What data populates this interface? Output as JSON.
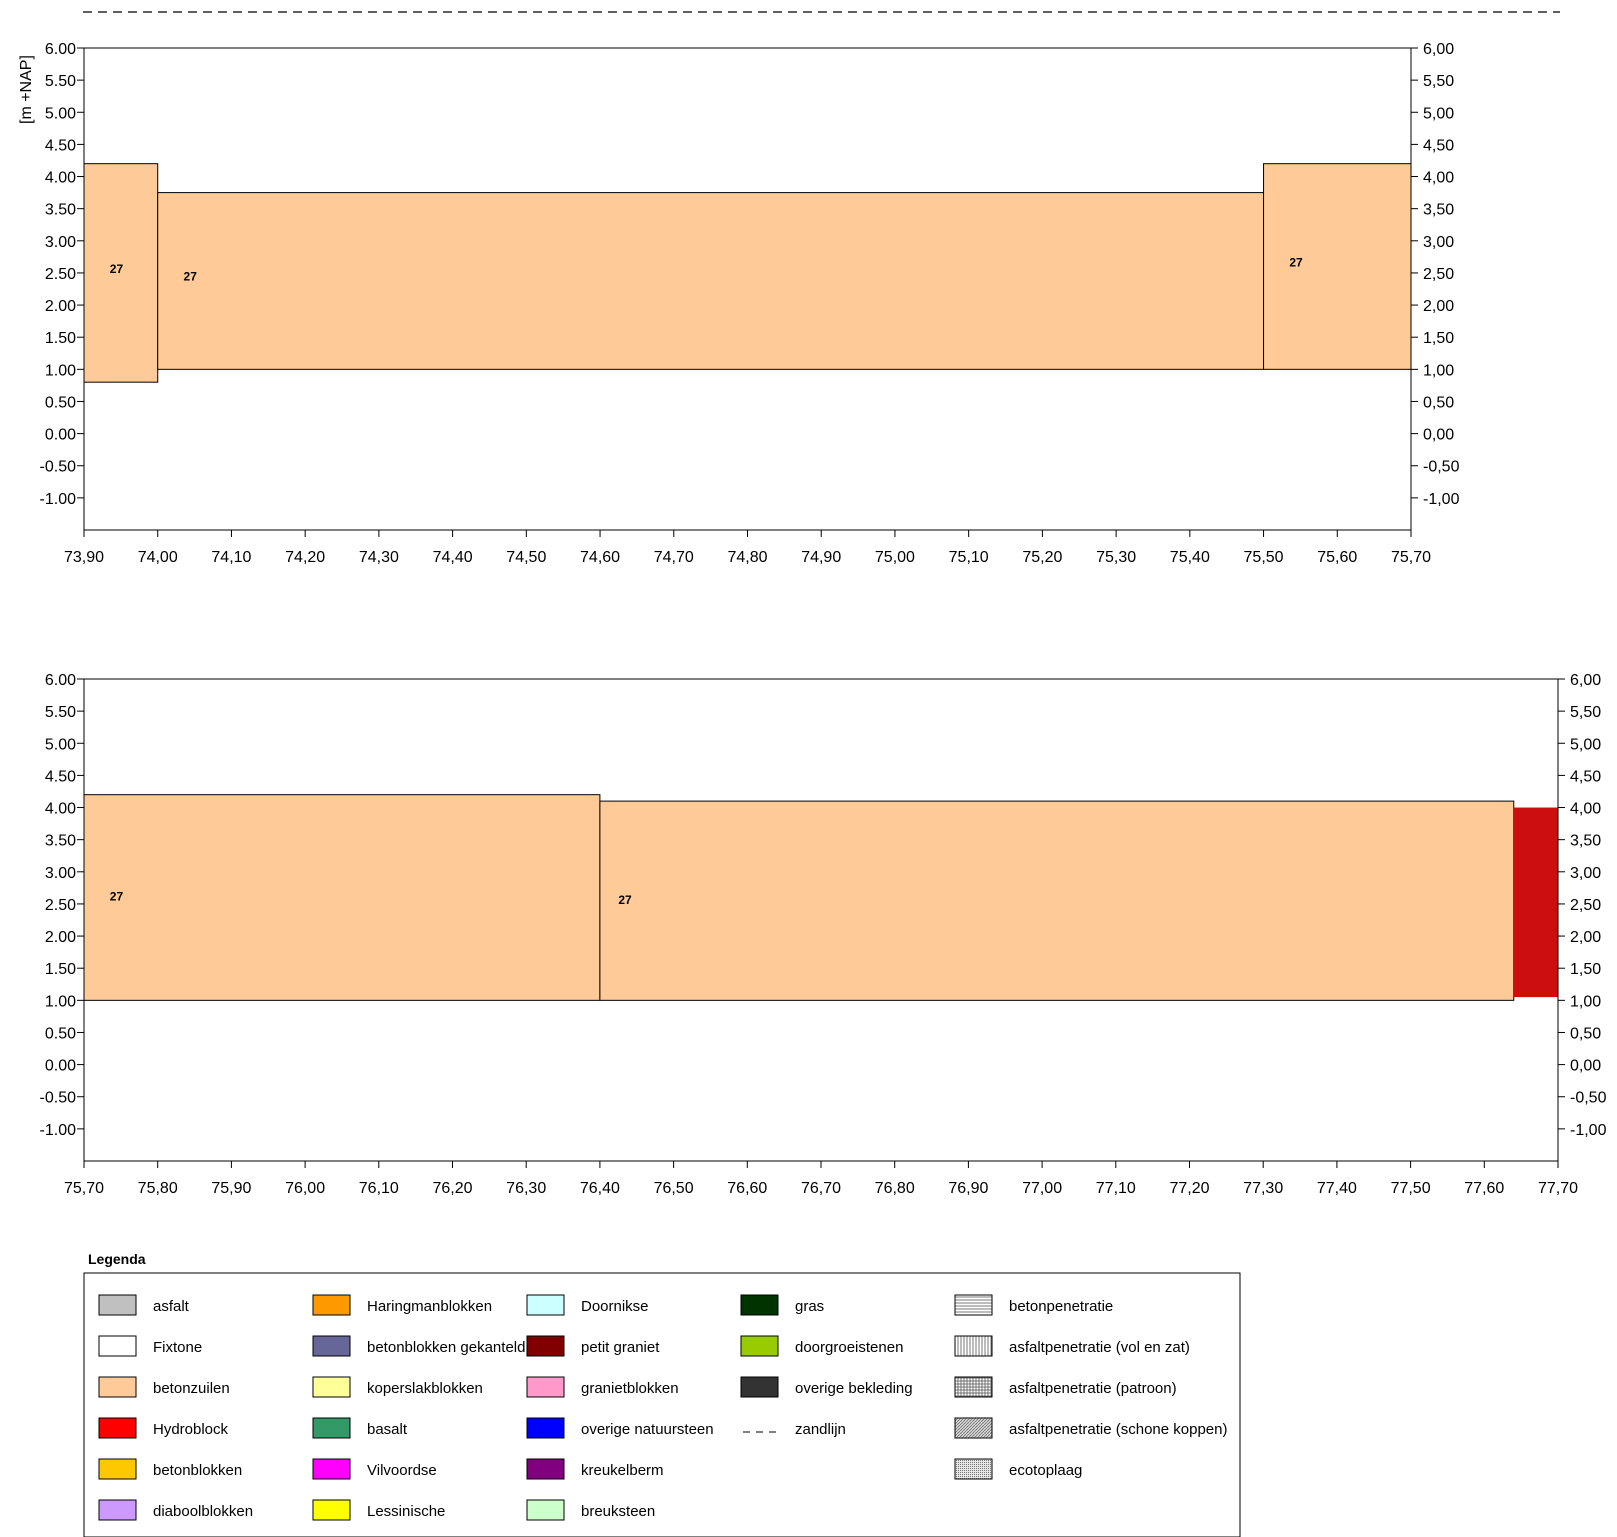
{
  "chart_data": [
    {
      "type": "bar",
      "subtype": "revetment-profile",
      "xlabel": "",
      "ylabel": "[m +NAP]",
      "xlim": [
        73.9,
        75.7
      ],
      "ylim": [
        -1.5,
        6.0
      ],
      "grid": false,
      "x_ticks": [
        "73,90",
        "74,00",
        "74,10",
        "74,20",
        "74,30",
        "74,40",
        "74,50",
        "74,60",
        "74,70",
        "74,80",
        "74,90",
        "75,00",
        "75,10",
        "75,20",
        "75,30",
        "75,40",
        "75,50",
        "75,60",
        "75,70"
      ],
      "y_ticks_left": [
        "6.00",
        "5.50",
        "5.00",
        "4.50",
        "4.00",
        "3.50",
        "3.00",
        "2.50",
        "2.00",
        "1.50",
        "1.00",
        "0.50",
        "0.00",
        "-0.50",
        "-1.00"
      ],
      "y_ticks_right": [
        "6,00",
        "5,50",
        "5,00",
        "4,50",
        "4,00",
        "3,50",
        "3,00",
        "2,50",
        "2,00",
        "1,50",
        "1,00",
        "0,50",
        "0,00",
        "-0,50",
        "-1,00"
      ],
      "segments": [
        {
          "x0": 73.9,
          "x1": 74.0,
          "y0": 0.8,
          "y1": 4.2,
          "material": "betonzuilen",
          "label": "27",
          "label_x": 73.935,
          "label_y": 2.5
        },
        {
          "x0": 74.0,
          "x1": 75.5,
          "y0": 1.0,
          "y1": 3.75,
          "material": "betonzuilen",
          "label": "27",
          "label_x": 74.035,
          "label_y": 2.38
        },
        {
          "x0": 75.5,
          "x1": 75.7,
          "y0": 1.0,
          "y1": 4.2,
          "material": "betonzuilen",
          "label": "27",
          "label_x": 75.535,
          "label_y": 2.6
        }
      ]
    },
    {
      "type": "bar",
      "subtype": "revetment-profile",
      "xlabel": "",
      "ylabel": "",
      "xlim": [
        75.7,
        77.7
      ],
      "ylim": [
        -1.5,
        6.0
      ],
      "grid": false,
      "x_ticks": [
        "75,70",
        "75,80",
        "75,90",
        "76,00",
        "76,10",
        "76,20",
        "76,30",
        "76,40",
        "76,50",
        "76,60",
        "76,70",
        "76,80",
        "76,90",
        "77,00",
        "77,10",
        "77,20",
        "77,30",
        "77,40",
        "77,50",
        "77,60",
        "77,70"
      ],
      "y_ticks_left": [
        "6.00",
        "5.50",
        "5.00",
        "4.50",
        "4.00",
        "3.50",
        "3.00",
        "2.50",
        "2.00",
        "1.50",
        "1.00",
        "0.50",
        "0.00",
        "-0.50",
        "-1.00"
      ],
      "y_ticks_right": [
        "6,00",
        "5,50",
        "5,00",
        "4,50",
        "4,00",
        "3,50",
        "3,00",
        "2,50",
        "2,00",
        "1,50",
        "1,00",
        "0,50",
        "0,00",
        "-0,50",
        "-1,00"
      ],
      "segments": [
        {
          "x0": 75.7,
          "x1": 76.4,
          "y0": 1.0,
          "y1": 4.2,
          "material": "betonzuilen",
          "label": "27",
          "label_x": 75.735,
          "label_y": 2.55
        },
        {
          "x0": 76.4,
          "x1": 77.64,
          "y0": 1.0,
          "y1": 4.1,
          "material": "betonzuilen",
          "label": "27",
          "label_x": 76.425,
          "label_y": 2.5
        },
        {
          "x0": 77.64,
          "x1": 77.7,
          "y0": 1.05,
          "y1": 4.0,
          "material": "Hydroblock",
          "label": "",
          "color": "#cc0e0e"
        }
      ]
    }
  ],
  "legend": {
    "title": "Legenda",
    "columns": [
      [
        {
          "label": "asfalt",
          "color": "#c0c0c0",
          "pattern": "solid"
        },
        {
          "label": "Fixtone",
          "color": "#ffffff",
          "pattern": "solid"
        },
        {
          "label": "betonzuilen",
          "color": "#fecb98",
          "pattern": "solid"
        },
        {
          "label": "Hydroblock",
          "color": "#ff0000",
          "pattern": "solid"
        },
        {
          "label": "betonblokken",
          "color": "#fec800",
          "pattern": "solid"
        },
        {
          "label": "diaboolblokken",
          "color": "#cc99ff",
          "pattern": "solid"
        }
      ],
      [
        {
          "label": "Haringmanblokken",
          "color": "#ff9900",
          "pattern": "solid"
        },
        {
          "label": "betonblokken gekanteld",
          "color": "#666699",
          "pattern": "solid"
        },
        {
          "label": "koperslakblokken",
          "color": "#ffff99",
          "pattern": "solid"
        },
        {
          "label": "basalt",
          "color": "#339966",
          "pattern": "solid"
        },
        {
          "label": "Vilvoordse",
          "color": "#ff00ff",
          "pattern": "solid"
        },
        {
          "label": "Lessinische",
          "color": "#ffff00",
          "pattern": "solid"
        }
      ],
      [
        {
          "label": "Doornikse",
          "color": "#ccffff",
          "pattern": "solid"
        },
        {
          "label": "petit graniet",
          "color": "#800000",
          "pattern": "solid"
        },
        {
          "label": "granietblokken",
          "color": "#ff99cc",
          "pattern": "solid"
        },
        {
          "label": "overige natuursteen",
          "color": "#0000ff",
          "pattern": "solid"
        },
        {
          "label": "kreukelberm",
          "color": "#800080",
          "pattern": "solid"
        },
        {
          "label": "breuksteen",
          "color": "#ccffcc",
          "pattern": "solid"
        }
      ],
      [
        {
          "label": "gras",
          "color": "#003300",
          "pattern": "solid"
        },
        {
          "label": "doorgroeistenen",
          "color": "#99cc00",
          "pattern": "solid"
        },
        {
          "label": "overige bekleding",
          "color": "#333333",
          "pattern": "solid"
        },
        {
          "label": "zandlijn",
          "color": "#000000",
          "pattern": "dash"
        }
      ],
      [
        {
          "label": "betonpenetratie",
          "color": "#ffffff",
          "pattern": "hlines"
        },
        {
          "label": "asfaltpenetratie (vol en zat)",
          "color": "#ffffff",
          "pattern": "vlines"
        },
        {
          "label": "asfaltpenetratie (patroon)",
          "color": "#ffffff",
          "pattern": "grid"
        },
        {
          "label": "asfaltpenetratie (schone koppen)",
          "color": "#ffffff",
          "pattern": "diag"
        },
        {
          "label": "ecotoplaag",
          "color": "#ffffff",
          "pattern": "dots"
        }
      ]
    ]
  }
}
